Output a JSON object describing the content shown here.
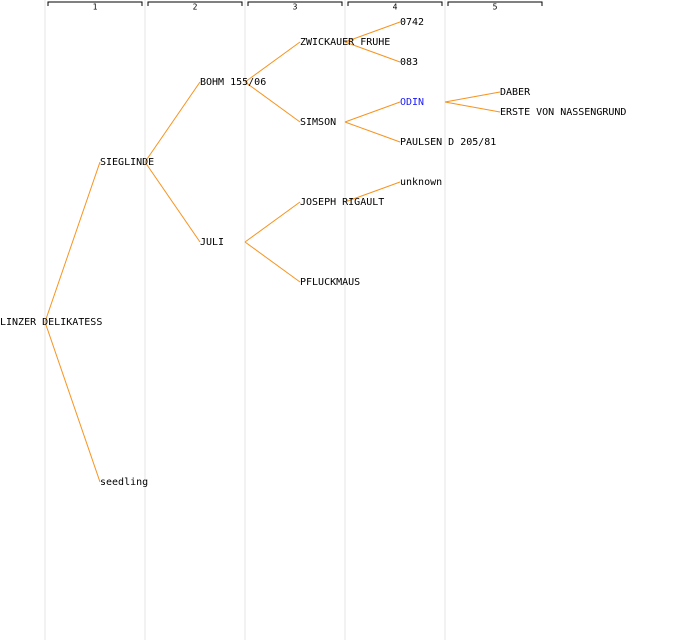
{
  "generations": [
    "1",
    "2",
    "3",
    "4",
    "5"
  ],
  "nodes": [
    {
      "label": "LINZER DELIKATESS"
    },
    {
      "label": "SIEGLINDE"
    },
    {
      "label": "seedling"
    },
    {
      "label": "BOHM 155/06"
    },
    {
      "label": "JULI"
    },
    {
      "label": "ZWICKAUER FRUHE"
    },
    {
      "label": "SIMSON"
    },
    {
      "label": "JOSEPH RIGAULT"
    },
    {
      "label": "PFLUCKMAUS"
    },
    {
      "label": "0742"
    },
    {
      "label": "083"
    },
    {
      "label": "ODIN"
    },
    {
      "label": "PAULSEN D 205/81"
    },
    {
      "label": "unknown"
    },
    {
      "label": "DABER"
    },
    {
      "label": "ERSTE VON NASSENGRUND"
    }
  ]
}
